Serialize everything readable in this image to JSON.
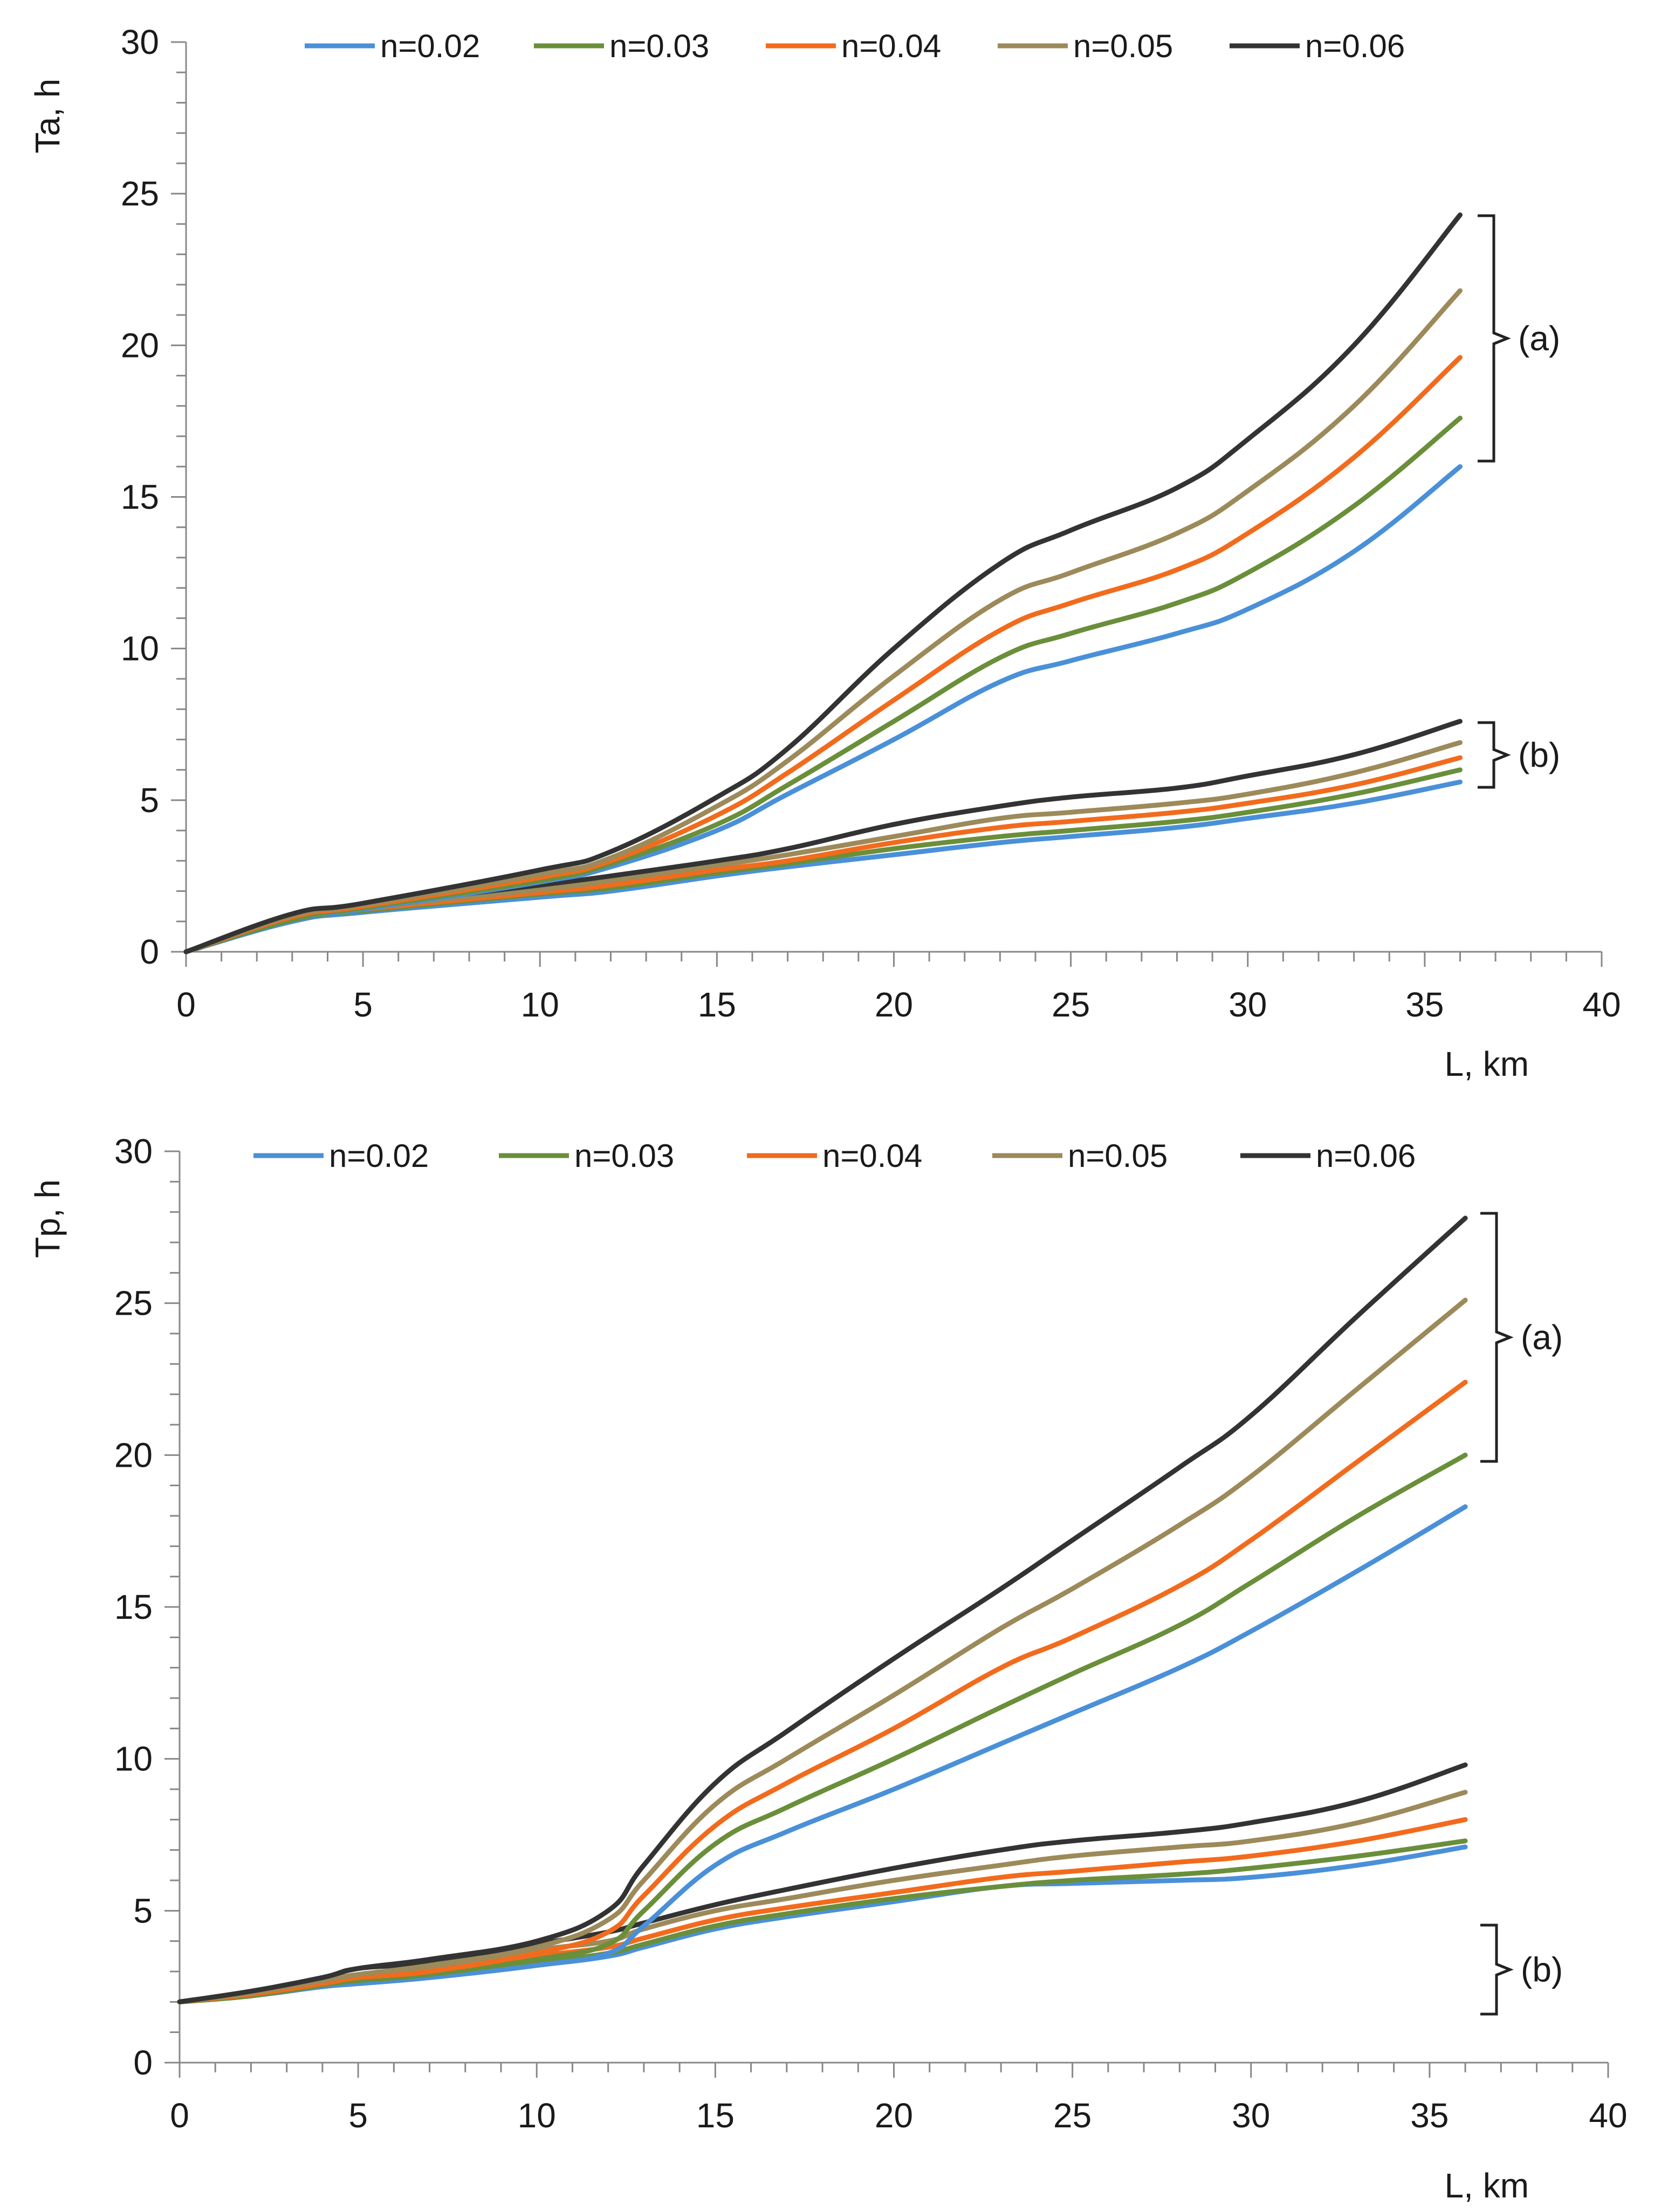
{
  "colors": {
    "n=0.02": "#4a90d9",
    "n=0.03": "#6a8f3a",
    "n=0.04": "#f26b1d",
    "n=0.05": "#9c8a5a",
    "n=0.06": "#333333",
    "axis": "#888888",
    "text": "#1a1a1a"
  },
  "chart_data": [
    {
      "type": "line",
      "title": "",
      "xlabel": "L, km",
      "ylabel": "Ta, h",
      "xlim": [
        0,
        40
      ],
      "ylim": [
        0,
        30
      ],
      "xticks": [
        "0",
        "5",
        "10",
        "15",
        "20",
        "25",
        "30",
        "35",
        "40"
      ],
      "yticks": [
        "0",
        "5",
        "10",
        "15",
        "20",
        "25",
        "30"
      ],
      "legend": [
        "n=0.02",
        "n=0.03",
        "n=0.04",
        "n=0.05",
        "n=0.06"
      ],
      "legend_position": "top",
      "group_labels": [
        "(a)",
        "(b)"
      ],
      "x": [
        0,
        3,
        5,
        10,
        12,
        15,
        17,
        20,
        23,
        25,
        28,
        30,
        33,
        36
      ],
      "series": [
        {
          "name": "n=0.02",
          "group": "(a)",
          "values": [
            0,
            1.1,
            1.4,
            2.3,
            2.8,
            4.0,
            5.2,
            7.0,
            8.9,
            9.6,
            10.5,
            11.3,
            13.2,
            16.0
          ]
        },
        {
          "name": "n=0.03",
          "group": "(a)",
          "values": [
            0,
            1.1,
            1.45,
            2.35,
            2.9,
            4.2,
            5.5,
            7.6,
            9.7,
            10.5,
            11.5,
            12.5,
            14.7,
            17.6
          ]
        },
        {
          "name": "n=0.04",
          "group": "(a)",
          "values": [
            0,
            1.15,
            1.5,
            2.45,
            3.0,
            4.5,
            5.9,
            8.3,
            10.6,
            11.5,
            12.6,
            13.8,
            16.3,
            19.6
          ]
        },
        {
          "name": "n=0.05",
          "group": "(a)",
          "values": [
            0,
            1.2,
            1.55,
            2.55,
            3.1,
            4.8,
            6.3,
            9.1,
            11.6,
            12.5,
            13.8,
            15.2,
            18.0,
            21.8
          ]
        },
        {
          "name": "n=0.06",
          "group": "(a)",
          "values": [
            0,
            1.25,
            1.6,
            2.7,
            3.3,
            5.1,
            6.7,
            10.0,
            12.8,
            13.9,
            15.3,
            16.9,
            20.0,
            24.3
          ]
        },
        {
          "name": "n=0.02",
          "group": "(b)",
          "values": [
            0,
            1.0,
            1.3,
            1.8,
            2.0,
            2.5,
            2.8,
            3.2,
            3.6,
            3.8,
            4.1,
            4.4,
            4.9,
            5.6
          ]
        },
        {
          "name": "n=0.03",
          "group": "(b)",
          "values": [
            0,
            1.05,
            1.35,
            1.9,
            2.1,
            2.6,
            2.9,
            3.4,
            3.8,
            4.0,
            4.3,
            4.6,
            5.2,
            6.0
          ]
        },
        {
          "name": "n=0.04",
          "group": "(b)",
          "values": [
            0,
            1.1,
            1.4,
            1.95,
            2.2,
            2.7,
            3.0,
            3.6,
            4.1,
            4.3,
            4.6,
            4.9,
            5.5,
            6.4
          ]
        },
        {
          "name": "n=0.05",
          "group": "(b)",
          "values": [
            0,
            1.15,
            1.45,
            2.05,
            2.35,
            2.85,
            3.2,
            3.8,
            4.4,
            4.6,
            4.9,
            5.2,
            5.9,
            6.9
          ]
        },
        {
          "name": "n=0.06",
          "group": "(b)",
          "values": [
            0,
            1.2,
            1.5,
            2.2,
            2.5,
            3.0,
            3.4,
            4.2,
            4.8,
            5.1,
            5.4,
            5.8,
            6.5,
            7.6
          ]
        }
      ]
    },
    {
      "type": "line",
      "title": "",
      "xlabel": "L, km",
      "ylabel": "Tp, h",
      "xlim": [
        0,
        40
      ],
      "ylim": [
        0,
        30
      ],
      "xticks": [
        "0",
        "5",
        "10",
        "15",
        "20",
        "25",
        "30",
        "35",
        "40"
      ],
      "yticks": [
        "0",
        "5",
        "10",
        "15",
        "20",
        "25",
        "30"
      ],
      "legend": [
        "n=0.02",
        "n=0.03",
        "n=0.04",
        "n=0.05",
        "n=0.06"
      ],
      "legend_position": "top",
      "group_labels": [
        "(a)",
        "(b)"
      ],
      "x": [
        0,
        2,
        4,
        5,
        7,
        10,
        12,
        13,
        15,
        17,
        20,
        23,
        25,
        28,
        30,
        33,
        36
      ],
      "series": [
        {
          "name": "n=0.02",
          "group": "(a)",
          "values": [
            2.0,
            2.2,
            2.5,
            2.6,
            2.8,
            3.2,
            3.6,
            4.5,
            6.5,
            7.6,
            9.0,
            10.5,
            11.5,
            13.0,
            14.2,
            16.2,
            18.3
          ]
        },
        {
          "name": "n=0.03",
          "group": "(a)",
          "values": [
            2.0,
            2.2,
            2.55,
            2.7,
            2.9,
            3.4,
            3.9,
            5.0,
            7.2,
            8.4,
            10.0,
            11.7,
            12.8,
            14.4,
            15.8,
            18.0,
            20.0
          ]
        },
        {
          "name": "n=0.04",
          "group": "(a)",
          "values": [
            2.0,
            2.25,
            2.6,
            2.8,
            3.0,
            3.6,
            4.3,
            5.5,
            7.8,
            9.2,
            11.0,
            13.0,
            14.0,
            15.7,
            17.2,
            19.8,
            22.4
          ]
        },
        {
          "name": "n=0.05",
          "group": "(a)",
          "values": [
            2.0,
            2.3,
            2.7,
            2.9,
            3.2,
            3.8,
            4.7,
            6.0,
            8.5,
            10.0,
            12.1,
            14.3,
            15.6,
            17.7,
            19.3,
            22.2,
            25.1
          ]
        },
        {
          "name": "n=0.06",
          "group": "(a)",
          "values": [
            2.0,
            2.35,
            2.8,
            3.1,
            3.4,
            4.0,
            5.0,
            6.5,
            9.2,
            10.9,
            13.3,
            15.6,
            17.2,
            19.6,
            21.3,
            24.6,
            27.8
          ]
        },
        {
          "name": "n=0.02",
          "group": "(b)",
          "values": [
            2.0,
            2.2,
            2.5,
            2.6,
            2.8,
            3.2,
            3.5,
            3.8,
            4.4,
            4.8,
            5.3,
            5.8,
            5.9,
            6.0,
            6.1,
            6.5,
            7.1
          ]
        },
        {
          "name": "n=0.03",
          "group": "(b)",
          "values": [
            2.0,
            2.2,
            2.55,
            2.7,
            2.9,
            3.3,
            3.6,
            3.9,
            4.5,
            4.9,
            5.4,
            5.8,
            6.0,
            6.2,
            6.4,
            6.8,
            7.3
          ]
        },
        {
          "name": "n=0.04",
          "group": "(b)",
          "values": [
            2.0,
            2.25,
            2.6,
            2.8,
            3.0,
            3.5,
            3.8,
            4.1,
            4.7,
            5.1,
            5.6,
            6.1,
            6.3,
            6.6,
            6.8,
            7.3,
            8.0
          ]
        },
        {
          "name": "n=0.05",
          "group": "(b)",
          "values": [
            2.0,
            2.3,
            2.7,
            2.9,
            3.1,
            3.7,
            4.0,
            4.4,
            5.0,
            5.4,
            6.0,
            6.5,
            6.8,
            7.1,
            7.3,
            7.9,
            8.9
          ]
        },
        {
          "name": "n=0.06",
          "group": "(b)",
          "values": [
            2.0,
            2.35,
            2.8,
            3.1,
            3.3,
            3.9,
            4.3,
            4.6,
            5.2,
            5.7,
            6.4,
            7.0,
            7.3,
            7.6,
            7.9,
            8.6,
            9.8
          ]
        }
      ]
    }
  ]
}
